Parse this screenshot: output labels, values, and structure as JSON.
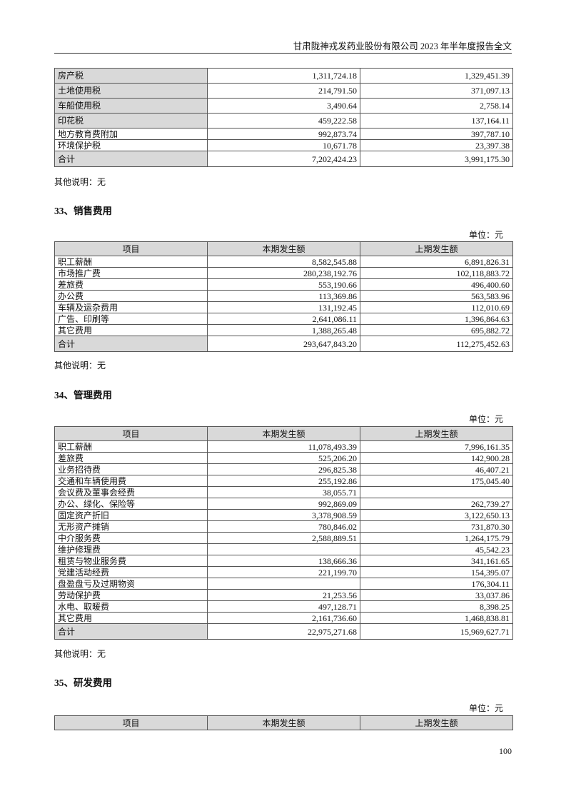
{
  "header": {
    "title": "甘肃陇神戎发药业股份有限公司 2023 年半年度报告全文"
  },
  "table_tax": {
    "rows": [
      {
        "label": "房产税",
        "cur": "1,311,724.18",
        "prev": "1,329,451.39",
        "style": "tall"
      },
      {
        "label": "土地使用税",
        "cur": "214,791.50",
        "prev": "371,097.13",
        "style": "tall"
      },
      {
        "label": "车船使用税",
        "cur": "3,490.64",
        "prev": "2,758.14",
        "style": "tall"
      },
      {
        "label": "印花税",
        "cur": "459,222.58",
        "prev": "137,164.11",
        "style": "tall"
      },
      {
        "label": "地方教育费附加",
        "cur": "992,873.74",
        "prev": "397,787.10",
        "style": "thin"
      },
      {
        "label": "环境保护税",
        "cur": "10,671.78",
        "prev": "23,397.38",
        "style": "thin"
      },
      {
        "label": "合计",
        "cur": "7,202,424.23",
        "prev": "3,991,175.30",
        "style": "total"
      }
    ],
    "note": "其他说明：无"
  },
  "section33": {
    "title": "33、销售费用",
    "unit": "单位：元",
    "headers": [
      "项目",
      "本期发生额",
      "上期发生额"
    ],
    "rows": [
      {
        "label": "职工薪酬",
        "cur": "8,582,545.88",
        "prev": "6,891,826.31",
        "style": "thin"
      },
      {
        "label": "市场推广费",
        "cur": "280,238,192.76",
        "prev": "102,118,883.72",
        "style": "thin"
      },
      {
        "label": "差旅费",
        "cur": "553,190.66",
        "prev": "496,400.60",
        "style": "thin"
      },
      {
        "label": "办公费",
        "cur": "113,369.86",
        "prev": "563,583.96",
        "style": "thin"
      },
      {
        "label": "车辆及运杂费用",
        "cur": "131,192.45",
        "prev": "112,010.69",
        "style": "thin"
      },
      {
        "label": "广告、印刷等",
        "cur": "2,641,086.11",
        "prev": "1,396,864.63",
        "style": "thin"
      },
      {
        "label": "其它费用",
        "cur": "1,388,265.48",
        "prev": "695,882.72",
        "style": "thin"
      },
      {
        "label": "合计",
        "cur": "293,647,843.20",
        "prev": "112,275,452.63",
        "style": "total"
      }
    ],
    "note": "其他说明：无"
  },
  "section34": {
    "title": "34、管理费用",
    "unit": "单位：元",
    "headers": [
      "项目",
      "本期发生额",
      "上期发生额"
    ],
    "rows": [
      {
        "label": "职工薪酬",
        "cur": "11,078,493.39",
        "prev": "7,996,161.35",
        "style": "thin"
      },
      {
        "label": "差旅费",
        "cur": "525,206.20",
        "prev": "142,900.28",
        "style": "thin"
      },
      {
        "label": "业务招待费",
        "cur": "296,825.38",
        "prev": "46,407.21",
        "style": "thin"
      },
      {
        "label": "交通和车辆使用费",
        "cur": "255,192.86",
        "prev": "175,045.40",
        "style": "thin"
      },
      {
        "label": "会议费及董事会经费",
        "cur": "38,055.71",
        "prev": "",
        "style": "thin"
      },
      {
        "label": "办公、绿化、保险等",
        "cur": "992,869.09",
        "prev": "262,739.27",
        "style": "thin"
      },
      {
        "label": "固定资产折旧",
        "cur": "3,378,908.59",
        "prev": "3,122,650.13",
        "style": "thin"
      },
      {
        "label": "无形资产摊销",
        "cur": "780,846.02",
        "prev": "731,870.30",
        "style": "thin"
      },
      {
        "label": "中介服务费",
        "cur": "2,588,889.51",
        "prev": "1,264,175.79",
        "style": "thin"
      },
      {
        "label": "维护修理费",
        "cur": "",
        "prev": "45,542.23",
        "style": "thin"
      },
      {
        "label": "租赁与物业服务费",
        "cur": "138,666.36",
        "prev": "341,161.65",
        "style": "thin"
      },
      {
        "label": "党建活动经费",
        "cur": "221,199.70",
        "prev": "154,395.07",
        "style": "thin"
      },
      {
        "label": "盘盈盘亏及过期物资",
        "cur": "",
        "prev": "176,304.11",
        "style": "thin"
      },
      {
        "label": "劳动保护费",
        "cur": "21,253.56",
        "prev": "33,037.86",
        "style": "thin"
      },
      {
        "label": "水电、取暖费",
        "cur": "497,128.71",
        "prev": "8,398.25",
        "style": "thin"
      },
      {
        "label": "其它费用",
        "cur": "2,161,736.60",
        "prev": "1,468,838.81",
        "style": "thin"
      },
      {
        "label": "合计",
        "cur": "22,975,271.68",
        "prev": "15,969,627.71",
        "style": "total"
      }
    ],
    "note": "其他说明：无"
  },
  "section35": {
    "title": "35、研发费用",
    "unit": "单位：元",
    "headers": [
      "项目",
      "本期发生额",
      "上期发生额"
    ],
    "rows": []
  },
  "footer": {
    "page": "100"
  }
}
